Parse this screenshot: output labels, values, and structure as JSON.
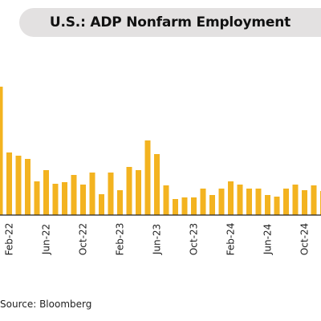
{
  "chart_data": {
    "type": "bar",
    "title": "U.S.: ADP Nonfarm Employment",
    "xlabel": "",
    "ylabel": "",
    "color": "#f3b320",
    "baseline_color": "#222222",
    "axis": "no y-axis or gridlines; only x tick labels are visible (rotated vertically)",
    "months": [
      "Jan-22",
      "Feb-22",
      "Mar-22",
      "Apr-22",
      "May-22",
      "Jun-22",
      "Jul-22",
      "Aug-22",
      "Sep-22",
      "Oct-22",
      "Nov-22",
      "Dec-22",
      "Jan-23",
      "Feb-23",
      "Mar-23",
      "Apr-23",
      "May-23",
      "Jun-23",
      "Jul-23",
      "Aug-23",
      "Sep-23",
      "Oct-23",
      "Nov-23",
      "Dec-23",
      "Jan-24",
      "Feb-24",
      "Mar-24",
      "Apr-24",
      "May-24",
      "Jun-24",
      "Jul-24",
      "Aug-24",
      "Sep-24",
      "Oct-24",
      "Nov-24",
      "Dec-24"
    ],
    "values": [
      160,
      78,
      74,
      70,
      42,
      56,
      39,
      41,
      50,
      38,
      53,
      26,
      53,
      31,
      60,
      56,
      93,
      76,
      37,
      20,
      22,
      22,
      33,
      25,
      33,
      42,
      38,
      33,
      33,
      25,
      23,
      33,
      38,
      31,
      37,
      30
    ],
    "x_tick_labels": [
      {
        "month": "Feb-22",
        "label": "Feb-22"
      },
      {
        "month": "Jun-22",
        "label": "Jun-22"
      },
      {
        "month": "Oct-22",
        "label": "Oct-22"
      },
      {
        "month": "Feb-23",
        "label": "Feb-23"
      },
      {
        "month": "Jun-23",
        "label": "Jun-23"
      },
      {
        "month": "Oct-23",
        "label": "Oct-23"
      },
      {
        "month": "Feb-24",
        "label": "Feb-24"
      },
      {
        "month": "Jun-24",
        "label": "Jun-24"
      },
      {
        "month": "Oct-24",
        "label": "Oct-24"
      }
    ],
    "ylim": [
      0,
      160
    ]
  },
  "source": "Source: Bloomberg"
}
